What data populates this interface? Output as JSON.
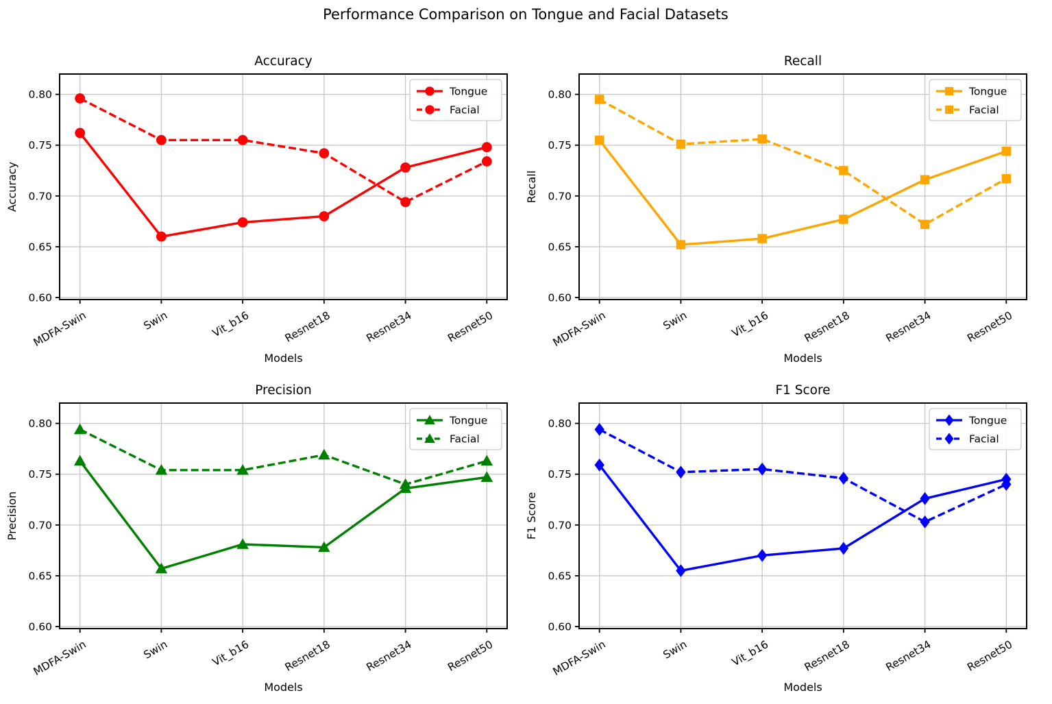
{
  "figure_title": "Performance Comparison on Tongue and Facial Datasets",
  "legend_labels": [
    "Tongue",
    "Facial"
  ],
  "chart_data": [
    {
      "id": "accuracy",
      "type": "line",
      "title": "Accuracy",
      "xlabel": "Models",
      "ylabel": "Accuracy",
      "color": "#ff0000",
      "marker": "circle",
      "grid": true,
      "legend_position": "upper right",
      "categories": [
        "MDFA-Swin",
        "Swin",
        "Vit_b16",
        "Resnet18",
        "Resnet34",
        "Resnet50"
      ],
      "ylim": [
        0.598,
        0.82
      ],
      "yticks": [
        0.6,
        0.65,
        0.7,
        0.75,
        0.8
      ],
      "series": [
        {
          "name": "Tongue",
          "linestyle": "solid",
          "values": [
            0.762,
            0.66,
            0.674,
            0.68,
            0.728,
            0.748
          ]
        },
        {
          "name": "Facial",
          "linestyle": "dashed",
          "values": [
            0.796,
            0.755,
            0.755,
            0.742,
            0.694,
            0.734
          ]
        }
      ]
    },
    {
      "id": "recall",
      "type": "line",
      "title": "Recall",
      "xlabel": "Models",
      "ylabel": "Recall",
      "color": "#ffa500",
      "marker": "square",
      "grid": true,
      "legend_position": "upper right",
      "categories": [
        "MDFA-Swin",
        "Swin",
        "Vit_b16",
        "Resnet18",
        "Resnet34",
        "Resnet50"
      ],
      "ylim": [
        0.598,
        0.82
      ],
      "yticks": [
        0.6,
        0.65,
        0.7,
        0.75,
        0.8
      ],
      "series": [
        {
          "name": "Tongue",
          "linestyle": "solid",
          "values": [
            0.755,
            0.652,
            0.658,
            0.677,
            0.716,
            0.744
          ]
        },
        {
          "name": "Facial",
          "linestyle": "dashed",
          "values": [
            0.795,
            0.751,
            0.756,
            0.725,
            0.672,
            0.717
          ]
        }
      ]
    },
    {
      "id": "precision",
      "type": "line",
      "title": "Precision",
      "xlabel": "Models",
      "ylabel": "Precision",
      "color": "#008000",
      "marker": "triangle",
      "grid": true,
      "legend_position": "upper right",
      "categories": [
        "MDFA-Swin",
        "Swin",
        "Vit_b16",
        "Resnet18",
        "Resnet34",
        "Resnet50"
      ],
      "ylim": [
        0.598,
        0.82
      ],
      "yticks": [
        0.6,
        0.65,
        0.7,
        0.75,
        0.8
      ],
      "series": [
        {
          "name": "Tongue",
          "linestyle": "solid",
          "values": [
            0.763,
            0.657,
            0.681,
            0.678,
            0.736,
            0.747
          ]
        },
        {
          "name": "Facial",
          "linestyle": "dashed",
          "values": [
            0.794,
            0.754,
            0.754,
            0.769,
            0.74,
            0.763
          ]
        }
      ]
    },
    {
      "id": "f1",
      "type": "line",
      "title": "F1 Score",
      "xlabel": "Models",
      "ylabel": "F1 Score",
      "color": "#0000ff",
      "marker": "diamond",
      "grid": true,
      "legend_position": "upper right",
      "categories": [
        "MDFA-Swin",
        "Swin",
        "Vit_b16",
        "Resnet18",
        "Resnet34",
        "Resnet50"
      ],
      "ylim": [
        0.598,
        0.82
      ],
      "yticks": [
        0.6,
        0.65,
        0.7,
        0.75,
        0.8
      ],
      "series": [
        {
          "name": "Tongue",
          "linestyle": "solid",
          "values": [
            0.759,
            0.655,
            0.67,
            0.677,
            0.726,
            0.745
          ]
        },
        {
          "name": "Facial",
          "linestyle": "dashed",
          "values": [
            0.794,
            0.752,
            0.755,
            0.746,
            0.703,
            0.74
          ]
        }
      ]
    }
  ]
}
